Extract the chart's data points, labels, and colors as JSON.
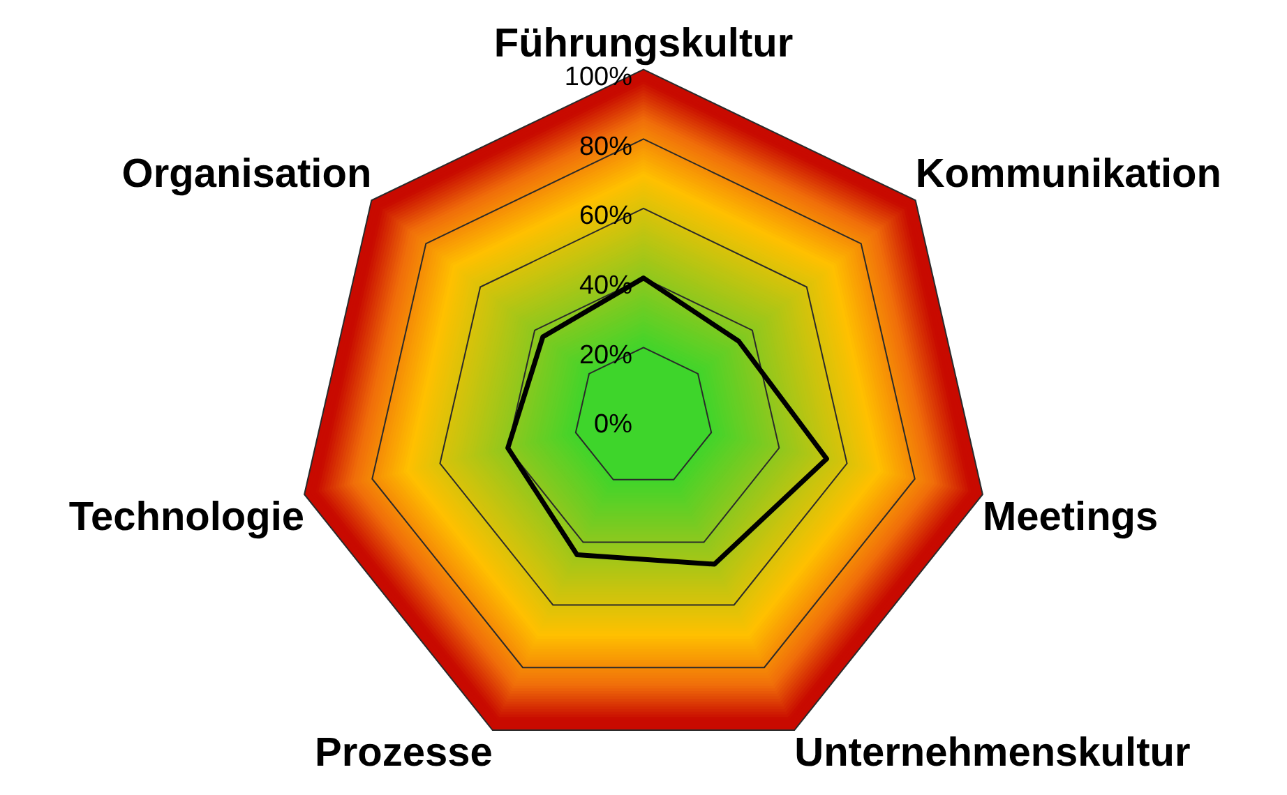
{
  "chart_data": {
    "type": "radar",
    "categories": [
      "Führungskultur",
      "Kommunikation",
      "Meetings",
      "Unternehmenskultur",
      "Prozesse",
      "Technologie",
      "Organisation"
    ],
    "series": [
      {
        "color": "#000000",
        "values": [
          40,
          35,
          54,
          47,
          44,
          40,
          37
        ]
      }
    ],
    "ylim": [
      0,
      100
    ],
    "yticks": [
      {
        "value": 0,
        "label": "0%"
      },
      {
        "value": 20,
        "label": "20%"
      },
      {
        "value": 40,
        "label": "40%"
      },
      {
        "value": 60,
        "label": "60%"
      },
      {
        "value": 80,
        "label": "80%"
      },
      {
        "value": 100,
        "label": "100%"
      }
    ],
    "grid": true,
    "marker": "none"
  }
}
